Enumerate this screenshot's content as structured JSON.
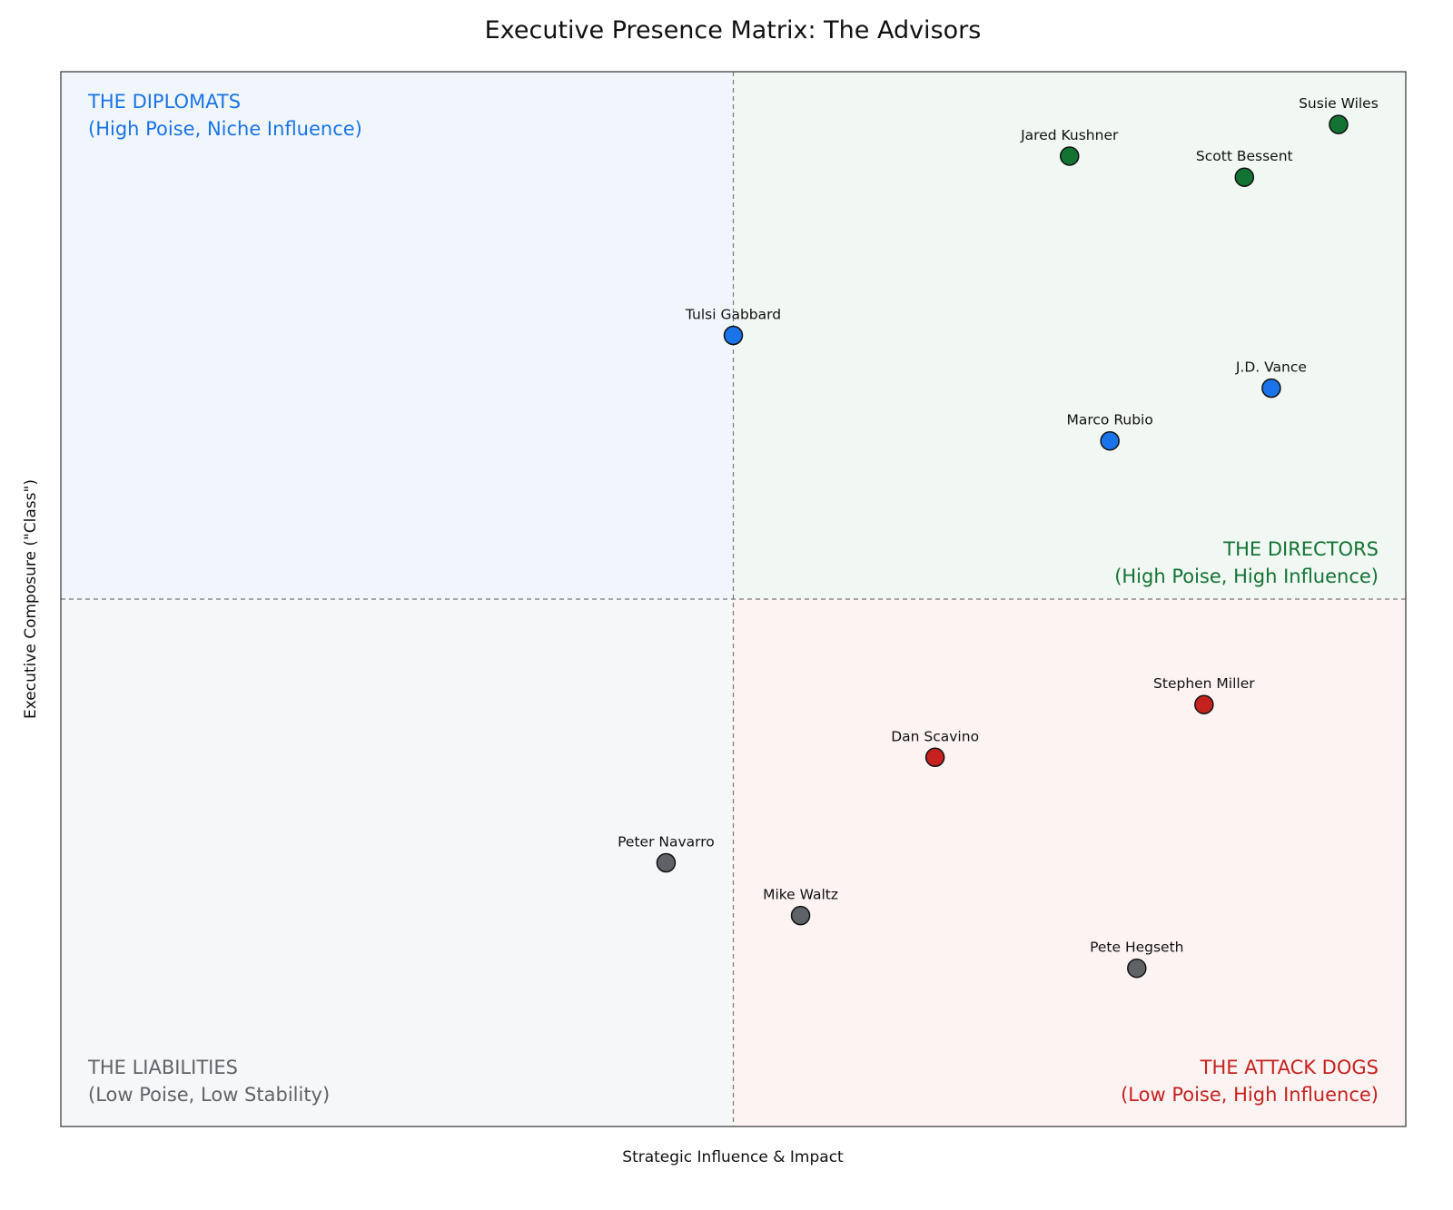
{
  "chart_data": {
    "type": "scatter",
    "title": "Executive Presence Matrix: The Advisors",
    "xlabel": "Strategic Influence & Impact",
    "ylabel": "Executive Composure (\"Class\")",
    "xlim": [
      0,
      10
    ],
    "ylim": [
      0,
      10
    ],
    "divider": {
      "x": 5,
      "y": 5
    },
    "grid": false,
    "quadrants": [
      {
        "key": "top-left",
        "title": "THE DIPLOMATS",
        "subtitle": "(High Poise, Niche Influence)",
        "color": "#1a73e8",
        "fill": "#f1f6fd"
      },
      {
        "key": "top-right",
        "title": "THE DIRECTORS",
        "subtitle": "(High Poise, High Influence)",
        "color": "#137333",
        "fill": "#f1f7f3"
      },
      {
        "key": "bottom-left",
        "title": "THE LIABILITIES",
        "subtitle": "(Low Poise, Low Stability)",
        "color": "#5f6368",
        "fill": "#f6f7f9"
      },
      {
        "key": "bottom-right",
        "title": "THE ATTACK DOGS",
        "subtitle": "(Low Poise, High Influence)",
        "color": "#c5221f",
        "fill": "#fcf3f2"
      }
    ],
    "points": [
      {
        "name": "Susie Wiles",
        "x": 9.5,
        "y": 9.5,
        "color": "#137333"
      },
      {
        "name": "Jared Kushner",
        "x": 7.5,
        "y": 9.2,
        "color": "#137333"
      },
      {
        "name": "Scott Bessent",
        "x": 8.8,
        "y": 9.0,
        "color": "#137333"
      },
      {
        "name": "Tulsi Gabbard",
        "x": 5.0,
        "y": 7.5,
        "color": "#1a73e8"
      },
      {
        "name": "J.D. Vance",
        "x": 9.0,
        "y": 7.0,
        "color": "#1a73e8"
      },
      {
        "name": "Marco Rubio",
        "x": 7.8,
        "y": 6.5,
        "color": "#1a73e8"
      },
      {
        "name": "Stephen Miller",
        "x": 8.5,
        "y": 4.0,
        "color": "#c5221f"
      },
      {
        "name": "Dan Scavino",
        "x": 6.5,
        "y": 3.5,
        "color": "#c5221f"
      },
      {
        "name": "Peter Navarro",
        "x": 4.5,
        "y": 2.5,
        "color": "#5f6368"
      },
      {
        "name": "Mike Waltz",
        "x": 5.5,
        "y": 2.0,
        "color": "#5f6368"
      },
      {
        "name": "Pete Hegseth",
        "x": 8.0,
        "y": 1.5,
        "color": "#5f6368"
      }
    ]
  }
}
